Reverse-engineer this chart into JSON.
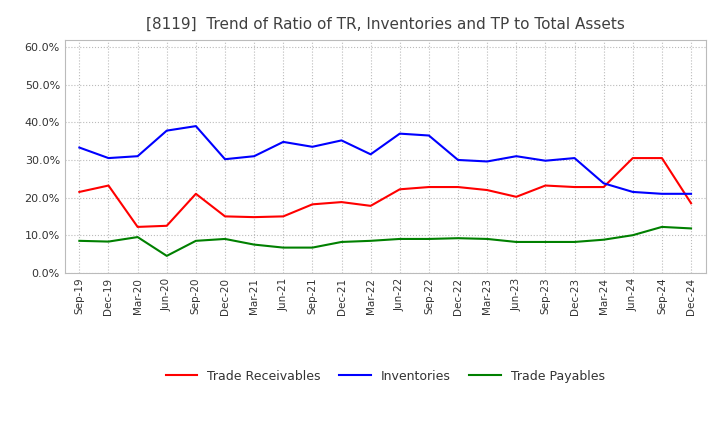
{
  "title": "[8119]  Trend of Ratio of TR, Inventories and TP to Total Assets",
  "x_labels": [
    "Sep-19",
    "Dec-19",
    "Mar-20",
    "Jun-20",
    "Sep-20",
    "Dec-20",
    "Mar-21",
    "Jun-21",
    "Sep-21",
    "Dec-21",
    "Mar-22",
    "Jun-22",
    "Sep-22",
    "Dec-22",
    "Mar-23",
    "Jun-23",
    "Sep-23",
    "Dec-23",
    "Mar-24",
    "Jun-24",
    "Sep-24",
    "Dec-24"
  ],
  "trade_receivables": [
    0.215,
    0.232,
    0.122,
    0.125,
    0.21,
    0.15,
    0.148,
    0.15,
    0.182,
    0.188,
    0.178,
    0.222,
    0.228,
    0.228,
    0.22,
    0.202,
    0.232,
    0.228,
    0.228,
    0.305,
    0.305,
    0.185
  ],
  "inventories": [
    0.333,
    0.305,
    0.31,
    0.378,
    0.39,
    0.302,
    0.31,
    0.348,
    0.335,
    0.352,
    0.315,
    0.37,
    0.365,
    0.3,
    0.296,
    0.31,
    0.298,
    0.305,
    0.238,
    0.215,
    0.21,
    0.21
  ],
  "trade_payables": [
    0.085,
    0.083,
    0.095,
    0.045,
    0.085,
    0.09,
    0.075,
    0.067,
    0.067,
    0.082,
    0.085,
    0.09,
    0.09,
    0.092,
    0.09,
    0.082,
    0.082,
    0.082,
    0.088,
    0.1,
    0.122,
    0.118
  ],
  "tr_color": "#ff0000",
  "inv_color": "#0000ff",
  "tp_color": "#008000",
  "background_color": "#ffffff",
  "grid_color": "#bbbbbb",
  "title_color": "#404040",
  "ylim": [
    0.0,
    0.62
  ],
  "yticks": [
    0.0,
    0.1,
    0.2,
    0.3,
    0.4,
    0.5,
    0.6
  ],
  "legend_labels": [
    "Trade Receivables",
    "Inventories",
    "Trade Payables"
  ]
}
